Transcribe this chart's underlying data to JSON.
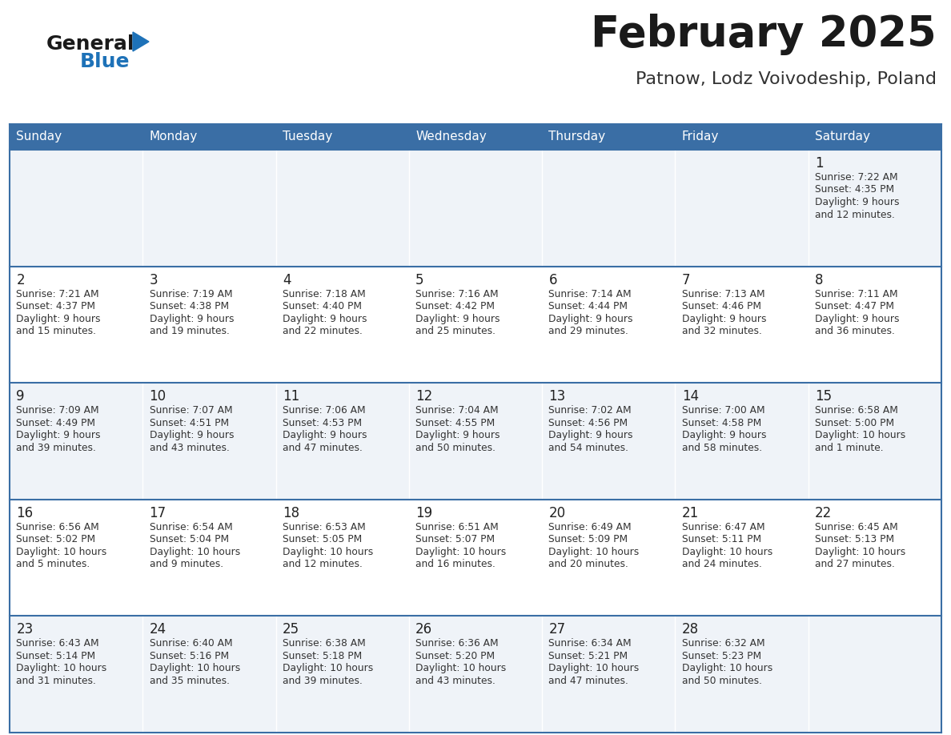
{
  "title": "February 2025",
  "subtitle": "Patnow, Lodz Voivodeship, Poland",
  "days_of_week": [
    "Sunday",
    "Monday",
    "Tuesday",
    "Wednesday",
    "Thursday",
    "Friday",
    "Saturday"
  ],
  "header_bg": "#3a6ea5",
  "header_text": "#ffffff",
  "row_bg_odd": "#eff3f8",
  "row_bg_even": "#ffffff",
  "border_color": "#3a6ea5",
  "day_num_color": "#222222",
  "info_color": "#333333",
  "title_color": "#1a1a1a",
  "subtitle_color": "#333333",
  "logo_general_color": "#1a1a1a",
  "logo_blue_color": "#1e72b8",
  "logo_triangle_color": "#1e72b8",
  "calendar": [
    [
      null,
      null,
      null,
      null,
      null,
      null,
      {
        "day": 1,
        "sunrise": "7:22 AM",
        "sunset": "4:35 PM",
        "daylight": "9 hours",
        "daylight2": "and 12 minutes."
      }
    ],
    [
      {
        "day": 2,
        "sunrise": "7:21 AM",
        "sunset": "4:37 PM",
        "daylight": "9 hours",
        "daylight2": "and 15 minutes."
      },
      {
        "day": 3,
        "sunrise": "7:19 AM",
        "sunset": "4:38 PM",
        "daylight": "9 hours",
        "daylight2": "and 19 minutes."
      },
      {
        "day": 4,
        "sunrise": "7:18 AM",
        "sunset": "4:40 PM",
        "daylight": "9 hours",
        "daylight2": "and 22 minutes."
      },
      {
        "day": 5,
        "sunrise": "7:16 AM",
        "sunset": "4:42 PM",
        "daylight": "9 hours",
        "daylight2": "and 25 minutes."
      },
      {
        "day": 6,
        "sunrise": "7:14 AM",
        "sunset": "4:44 PM",
        "daylight": "9 hours",
        "daylight2": "and 29 minutes."
      },
      {
        "day": 7,
        "sunrise": "7:13 AM",
        "sunset": "4:46 PM",
        "daylight": "9 hours",
        "daylight2": "and 32 minutes."
      },
      {
        "day": 8,
        "sunrise": "7:11 AM",
        "sunset": "4:47 PM",
        "daylight": "9 hours",
        "daylight2": "and 36 minutes."
      }
    ],
    [
      {
        "day": 9,
        "sunrise": "7:09 AM",
        "sunset": "4:49 PM",
        "daylight": "9 hours",
        "daylight2": "and 39 minutes."
      },
      {
        "day": 10,
        "sunrise": "7:07 AM",
        "sunset": "4:51 PM",
        "daylight": "9 hours",
        "daylight2": "and 43 minutes."
      },
      {
        "day": 11,
        "sunrise": "7:06 AM",
        "sunset": "4:53 PM",
        "daylight": "9 hours",
        "daylight2": "and 47 minutes."
      },
      {
        "day": 12,
        "sunrise": "7:04 AM",
        "sunset": "4:55 PM",
        "daylight": "9 hours",
        "daylight2": "and 50 minutes."
      },
      {
        "day": 13,
        "sunrise": "7:02 AM",
        "sunset": "4:56 PM",
        "daylight": "9 hours",
        "daylight2": "and 54 minutes."
      },
      {
        "day": 14,
        "sunrise": "7:00 AM",
        "sunset": "4:58 PM",
        "daylight": "9 hours",
        "daylight2": "and 58 minutes."
      },
      {
        "day": 15,
        "sunrise": "6:58 AM",
        "sunset": "5:00 PM",
        "daylight": "10 hours",
        "daylight2": "and 1 minute."
      }
    ],
    [
      {
        "day": 16,
        "sunrise": "6:56 AM",
        "sunset": "5:02 PM",
        "daylight": "10 hours",
        "daylight2": "and 5 minutes."
      },
      {
        "day": 17,
        "sunrise": "6:54 AM",
        "sunset": "5:04 PM",
        "daylight": "10 hours",
        "daylight2": "and 9 minutes."
      },
      {
        "day": 18,
        "sunrise": "6:53 AM",
        "sunset": "5:05 PM",
        "daylight": "10 hours",
        "daylight2": "and 12 minutes."
      },
      {
        "day": 19,
        "sunrise": "6:51 AM",
        "sunset": "5:07 PM",
        "daylight": "10 hours",
        "daylight2": "and 16 minutes."
      },
      {
        "day": 20,
        "sunrise": "6:49 AM",
        "sunset": "5:09 PM",
        "daylight": "10 hours",
        "daylight2": "and 20 minutes."
      },
      {
        "day": 21,
        "sunrise": "6:47 AM",
        "sunset": "5:11 PM",
        "daylight": "10 hours",
        "daylight2": "and 24 minutes."
      },
      {
        "day": 22,
        "sunrise": "6:45 AM",
        "sunset": "5:13 PM",
        "daylight": "10 hours",
        "daylight2": "and 27 minutes."
      }
    ],
    [
      {
        "day": 23,
        "sunrise": "6:43 AM",
        "sunset": "5:14 PM",
        "daylight": "10 hours",
        "daylight2": "and 31 minutes."
      },
      {
        "day": 24,
        "sunrise": "6:40 AM",
        "sunset": "5:16 PM",
        "daylight": "10 hours",
        "daylight2": "and 35 minutes."
      },
      {
        "day": 25,
        "sunrise": "6:38 AM",
        "sunset": "5:18 PM",
        "daylight": "10 hours",
        "daylight2": "and 39 minutes."
      },
      {
        "day": 26,
        "sunrise": "6:36 AM",
        "sunset": "5:20 PM",
        "daylight": "10 hours",
        "daylight2": "and 43 minutes."
      },
      {
        "day": 27,
        "sunrise": "6:34 AM",
        "sunset": "5:21 PM",
        "daylight": "10 hours",
        "daylight2": "and 47 minutes."
      },
      {
        "day": 28,
        "sunrise": "6:32 AM",
        "sunset": "5:23 PM",
        "daylight": "10 hours",
        "daylight2": "and 50 minutes."
      },
      null
    ]
  ]
}
